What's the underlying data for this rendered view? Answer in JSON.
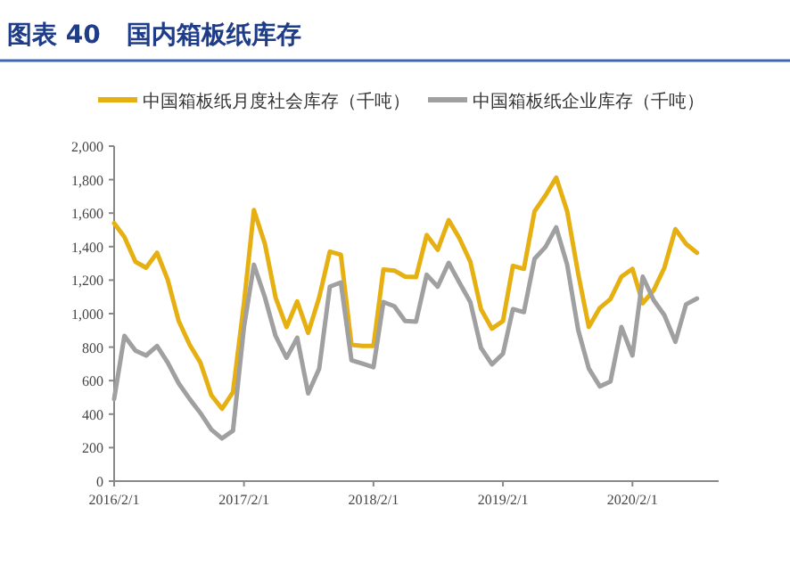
{
  "chart_data": {
    "type": "line",
    "title": "图表 40   国内箱板纸库存",
    "x": [
      "2016-02",
      "2016-03",
      "2016-04",
      "2016-05",
      "2016-06",
      "2016-07",
      "2016-08",
      "2016-09",
      "2016-10",
      "2016-11",
      "2016-12",
      "2017-01",
      "2017-02",
      "2017-03",
      "2017-04",
      "2017-05",
      "2017-06",
      "2017-07",
      "2017-08",
      "2017-09",
      "2017-10",
      "2017-11",
      "2017-12",
      "2018-01",
      "2018-02",
      "2018-03",
      "2018-04",
      "2018-05",
      "2018-06",
      "2018-07",
      "2018-08",
      "2018-09",
      "2018-10",
      "2018-11",
      "2018-12",
      "2019-01",
      "2019-02",
      "2019-03",
      "2019-04",
      "2019-05",
      "2019-06",
      "2019-07",
      "2019-08",
      "2019-09",
      "2019-10",
      "2019-11",
      "2019-12",
      "2020-01",
      "2020-02",
      "2020-03",
      "2020-04",
      "2020-05",
      "2020-06",
      "2020-07",
      "2020-08"
    ],
    "series": [
      {
        "name": "中国箱板纸月度社会库存（千吨）",
        "color": "#e6b012",
        "values": [
          1540,
          1458,
          1310,
          1274,
          1363,
          1203,
          956,
          814,
          708,
          513,
          432,
          531,
          1062,
          1618,
          1416,
          1097,
          920,
          1073,
          885,
          1097,
          1370,
          1352,
          814,
          807,
          807,
          1263,
          1257,
          1221,
          1218,
          1469,
          1381,
          1558,
          1451,
          1310,
          1027,
          910,
          956,
          1285,
          1267,
          1611,
          1706,
          1812,
          1611,
          1239,
          920,
          1034,
          1087,
          1221,
          1267,
          1062,
          1140,
          1274,
          1504,
          1416,
          1363
        ]
      },
      {
        "name": "中国箱板纸企业库存（千吨）",
        "color": "#a0a0a0",
        "values": [
          490,
          867,
          779,
          750,
          807,
          708,
          584,
          490,
          407,
          308,
          255,
          301,
          920,
          1292,
          1097,
          867,
          736,
          856,
          524,
          672,
          1161,
          1186,
          722,
          701,
          680,
          1069,
          1044,
          956,
          952,
          1232,
          1161,
          1303,
          1186,
          1069,
          796,
          697,
          761,
          1027,
          1009,
          1327,
          1398,
          1515,
          1292,
          903,
          672,
          566,
          594,
          920,
          750,
          1221,
          1080,
          991,
          832,
          1055,
          1090
        ]
      }
    ],
    "xlim": [
      "2016-02-01",
      "2020-10-01"
    ],
    "xticks": [
      {
        "value": "2016-02-01",
        "label": "2016/2/1"
      },
      {
        "value": "2017-02-01",
        "label": "2017/2/1"
      },
      {
        "value": "2018-02-01",
        "label": "2018/2/1"
      },
      {
        "value": "2019-02-01",
        "label": "2019/2/1"
      },
      {
        "value": "2020-02-01",
        "label": "2020/2/1"
      }
    ],
    "ylim": [
      0,
      2000
    ],
    "yticks": [
      {
        "value": 0,
        "label": "0"
      },
      {
        "value": 200,
        "label": "200"
      },
      {
        "value": 400,
        "label": "400"
      },
      {
        "value": 600,
        "label": "600"
      },
      {
        "value": 800,
        "label": "800"
      },
      {
        "value": 1000,
        "label": "1,000"
      },
      {
        "value": 1200,
        "label": "1,200"
      },
      {
        "value": 1400,
        "label": "1,400"
      },
      {
        "value": 1600,
        "label": "1,600"
      },
      {
        "value": 1800,
        "label": "1,800"
      },
      {
        "value": 2000,
        "label": "2,000"
      }
    ],
    "legend": "top",
    "grid": false,
    "marker": "none",
    "line_style": "solid"
  }
}
